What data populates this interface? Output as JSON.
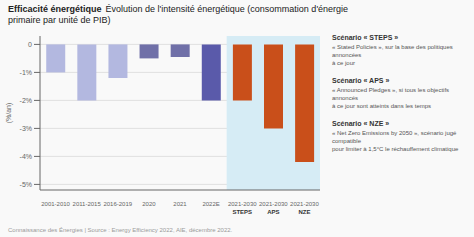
{
  "chart_data": {
    "type": "bar",
    "title": "Efficacité énergétique",
    "subtitle": "Évolution de l'intensité énergétique (consommation d'énergie\nprimaire par unité de PIB)",
    "y_label": "(%/an)",
    "categories": [
      "2001-2010",
      "2011-2015",
      "2016-2019",
      "2020",
      "2021",
      "2022E",
      "2021-2030\nSTEPS",
      "2021-2030\nAPS",
      "2021-2030\nNZE"
    ],
    "values": [
      -1.0,
      -2.0,
      -1.2,
      -0.5,
      -0.45,
      -2.0,
      -2.0,
      -3.0,
      -4.2
    ],
    "colors": [
      "#b3b8e0",
      "#b3b8e0",
      "#b3b8e0",
      "#7070a8",
      "#7070a8",
      "#5a5aaa",
      "#c94f1a",
      "#c94f1a",
      "#c94f1a"
    ],
    "ylim": [
      -5.2,
      0.3
    ],
    "yticks": [
      0,
      {
        "value": -1,
        "label": "-1%"
      },
      {
        "value": -2,
        "label": "-2%"
      },
      {
        "value": -3,
        "label": "-3%"
      },
      {
        "value": -4,
        "label": "-4%"
      },
      {
        "value": -5,
        "label": "-5%"
      }
    ],
    "grid": true,
    "annotations": [
      {
        "title": "Scénario « STEPS »",
        "text": "« Stated Policies », sur la base des politiques annoncées\nà ce jour"
      },
      {
        "title": "Scénario « APS »",
        "text": "« Announced Pledges », si tous les objectifs annoncés\nà ce jour sont atteints dans les temps"
      },
      {
        "title": "Scénario « NZE »",
        "text": "« Net Zero Emissions by 2050 », scénario jugé compatible\npour limiter à 1,5°C le réchauffement climatique"
      }
    ],
    "source": "Connaissance des Énergies | Source : Energy Efficiency 2022, AIE, décembre 2022."
  }
}
